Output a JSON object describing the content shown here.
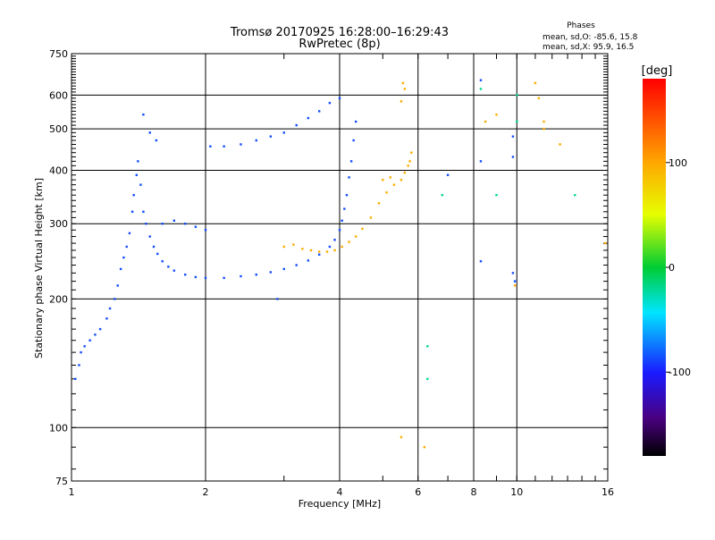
{
  "chart_data": {
    "type": "scatter",
    "title": "Tromsø 20170925 16:28:00–16:29:43",
    "subtitle": "RwPretec (8p)",
    "xlabel": "Frequency [MHz]",
    "ylabel": "Stationary phase Virtual Height [km]",
    "x_scale": "log",
    "y_scale": "log",
    "xlim": [
      1,
      16
    ],
    "ylim": [
      75,
      750
    ],
    "x_ticks": [
      1,
      2,
      4,
      6,
      8,
      10,
      16
    ],
    "y_ticks": [
      75,
      100,
      200,
      300,
      400,
      500,
      600,
      750
    ],
    "grid": true,
    "phases_box": {
      "heading": "Phases",
      "line_o": "mean, sd,O: -85.6, 15.8",
      "line_x": "mean, sd,X:  95.9, 16.5"
    },
    "colorbar": {
      "label": "[deg]",
      "ticks": [
        100,
        0,
        -100
      ],
      "range": [
        -180,
        180
      ],
      "colormap": "rainbow"
    },
    "series": [
      {
        "polarization": "O",
        "phase_deg": -85.6,
        "points": [
          [
            1.02,
            130
          ],
          [
            1.04,
            140
          ],
          [
            1.05,
            150
          ],
          [
            1.07,
            155
          ],
          [
            1.1,
            160
          ],
          [
            1.13,
            165
          ],
          [
            1.16,
            170
          ],
          [
            1.2,
            180
          ],
          [
            1.22,
            190
          ],
          [
            1.25,
            200
          ],
          [
            1.27,
            215
          ],
          [
            1.29,
            235
          ],
          [
            1.31,
            250
          ],
          [
            1.33,
            265
          ],
          [
            1.35,
            285
          ],
          [
            1.37,
            320
          ],
          [
            1.38,
            350
          ],
          [
            1.4,
            390
          ],
          [
            1.41,
            420
          ],
          [
            1.43,
            370
          ],
          [
            1.45,
            320
          ],
          [
            1.47,
            300
          ],
          [
            1.5,
            280
          ],
          [
            1.53,
            265
          ],
          [
            1.56,
            255
          ],
          [
            1.6,
            245
          ],
          [
            1.65,
            238
          ],
          [
            1.7,
            233
          ],
          [
            1.8,
            228
          ],
          [
            1.9,
            225
          ],
          [
            2.0,
            224
          ],
          [
            2.2,
            224
          ],
          [
            2.4,
            226
          ],
          [
            2.6,
            228
          ],
          [
            2.8,
            231
          ],
          [
            3.0,
            235
          ],
          [
            3.2,
            240
          ],
          [
            3.4,
            246
          ],
          [
            3.6,
            254
          ],
          [
            3.8,
            265
          ],
          [
            3.9,
            275
          ],
          [
            4.0,
            290
          ],
          [
            4.05,
            305
          ],
          [
            4.1,
            325
          ],
          [
            4.15,
            350
          ],
          [
            4.2,
            385
          ],
          [
            4.25,
            420
          ],
          [
            4.3,
            470
          ],
          [
            4.35,
            520
          ],
          [
            1.45,
            540
          ],
          [
            1.5,
            490
          ],
          [
            1.55,
            470
          ],
          [
            1.6,
            300
          ],
          [
            1.7,
            305
          ],
          [
            1.8,
            300
          ],
          [
            1.9,
            295
          ],
          [
            2.0,
            290
          ],
          [
            2.05,
            455
          ],
          [
            2.2,
            455
          ],
          [
            2.4,
            460
          ],
          [
            2.6,
            470
          ],
          [
            2.8,
            480
          ],
          [
            3.0,
            490
          ],
          [
            3.2,
            510
          ],
          [
            3.4,
            530
          ],
          [
            3.6,
            550
          ],
          [
            3.8,
            575
          ],
          [
            4.0,
            590
          ],
          [
            2.9,
            200
          ],
          [
            8.3,
            650
          ],
          [
            9.8,
            480
          ],
          [
            9.8,
            430
          ],
          [
            8.3,
            420
          ],
          [
            7.0,
            390
          ],
          [
            9.9,
            220
          ],
          [
            9.8,
            230
          ],
          [
            8.3,
            245
          ]
        ]
      },
      {
        "polarization": "X",
        "phase_deg": 95.9,
        "points": [
          [
            3.0,
            265
          ],
          [
            3.15,
            268
          ],
          [
            3.3,
            262
          ],
          [
            3.45,
            260
          ],
          [
            3.6,
            258
          ],
          [
            3.75,
            258
          ],
          [
            3.9,
            260
          ],
          [
            4.05,
            265
          ],
          [
            4.2,
            272
          ],
          [
            4.35,
            280
          ],
          [
            4.5,
            292
          ],
          [
            4.7,
            310
          ],
          [
            4.9,
            335
          ],
          [
            5.1,
            355
          ],
          [
            5.3,
            370
          ],
          [
            5.5,
            380
          ],
          [
            5.6,
            395
          ],
          [
            5.7,
            410
          ],
          [
            5.75,
            420
          ],
          [
            5.8,
            440
          ],
          [
            5.0,
            380
          ],
          [
            5.2,
            385
          ],
          [
            5.5,
            580
          ],
          [
            5.55,
            640
          ],
          [
            5.6,
            620
          ],
          [
            5.5,
            95
          ],
          [
            6.2,
            90
          ],
          [
            9.9,
            215
          ],
          [
            11.0,
            640
          ],
          [
            11.2,
            590
          ],
          [
            11.5,
            520
          ],
          [
            11.5,
            500
          ],
          [
            12.5,
            460
          ],
          [
            8.5,
            520
          ],
          [
            9.0,
            540
          ],
          [
            15.8,
            270
          ]
        ]
      },
      {
        "polarization": "noise",
        "phase_deg": -20,
        "points": [
          [
            6.3,
            155
          ],
          [
            6.3,
            130
          ],
          [
            8.3,
            620
          ],
          [
            10.0,
            600
          ],
          [
            10.0,
            520
          ],
          [
            6.8,
            350
          ],
          [
            9.0,
            350
          ],
          [
            13.5,
            350
          ]
        ]
      }
    ]
  }
}
